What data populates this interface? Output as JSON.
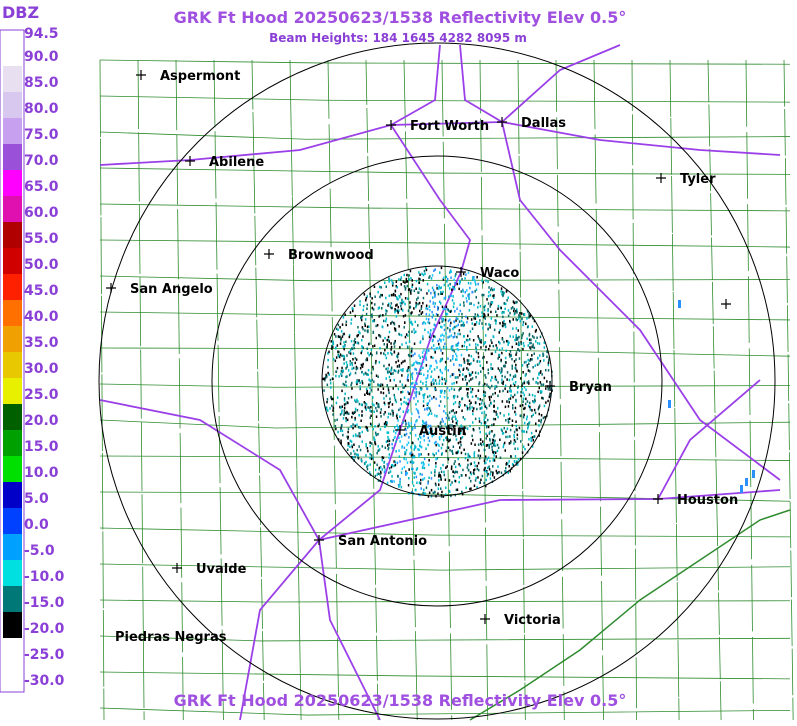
{
  "header": {
    "title": "GRK Ft Hood 20250623/1538 Reflectivity Elev 0.5°",
    "subtitle": "Beam Heights: 184 1645 4282 8095 m"
  },
  "legend": {
    "unit": "DBZ",
    "labels": [
      "94.5",
      "90.0",
      "85.0",
      "80.0",
      "75.0",
      "70.0",
      "65.0",
      "60.0",
      "55.0",
      "50.0",
      "45.0",
      "40.0",
      "35.0",
      "30.0",
      "25.0",
      "20.0",
      "15.0",
      "10.0",
      "5.0",
      "0.0",
      "-5.0",
      "-10.0",
      "-15.0",
      "-20.0",
      "-25.0",
      "-30.0"
    ]
  },
  "cities": [
    "Aspermont",
    "Fort Worth",
    "Dallas",
    "Abilene",
    "Tyler",
    "Brownwood",
    "Waco",
    "San Angelo",
    "Bryan",
    "Austin",
    "Houston",
    "San Antonio",
    "Uvalde",
    "Victoria",
    "Piedras Negras"
  ]
}
